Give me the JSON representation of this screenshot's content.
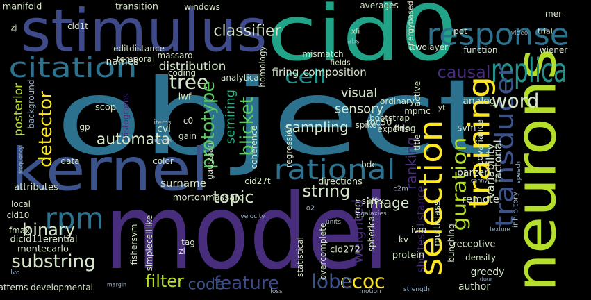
{
  "words": [
    "object",
    "model",
    "cid0",
    "stimulus",
    "kernel",
    "neurons",
    "response",
    "citation",
    "replica",
    "rational",
    "selection",
    "training",
    "transducer",
    "guration",
    "rpm",
    "cell",
    "classifier",
    "causal",
    "word",
    "tree",
    "detector",
    "prototype",
    "blicket",
    "semiring",
    "automata",
    "topic",
    "string",
    "image",
    "ranking",
    "ecoc",
    "feature",
    "code",
    "lobe",
    "filter",
    "substring",
    "binary",
    "weighted",
    "sampling",
    "sensory",
    "visual",
    "composition",
    "firing",
    "distribution",
    "names",
    "editdistance",
    "analytical",
    "posterior",
    "background",
    "scop",
    "cvl",
    "iwf",
    "c0",
    "gp",
    "gain",
    "histograms",
    "roc50",
    "mpmc",
    "analog",
    "svm",
    "covariance",
    "factorial",
    "variability",
    "parzen",
    "inhibitory",
    "remote",
    "multiclass",
    "bunching",
    "shortestdistance",
    "ivm",
    "kv",
    "protein",
    "receptive",
    "density",
    "greedy",
    "author",
    "cid272",
    "spherical",
    "suffix",
    "error",
    "overcomplete",
    "statistical",
    "directions",
    "cid27t",
    "bdc",
    "color",
    "data",
    "local",
    "attributes",
    "surname",
    "mortonmassaro",
    "cid10",
    "fmax",
    "dicid11erential",
    "tag",
    "zi",
    "fishersvm",
    "simplecelllike",
    "montecarlo",
    "patterns developmental",
    "manifold",
    "transition",
    "windows",
    "averages",
    "energybased",
    "twolayer",
    "mer",
    "cid1t",
    "xli",
    "trial",
    "wiener",
    "temporal",
    "massaro",
    "homology",
    "coding",
    "function",
    "pot",
    "mismatch",
    "fields",
    "zj",
    "ordinary",
    "experts",
    "bootstrap",
    "firing",
    "coherence",
    "gaussian",
    "regression",
    "o2",
    "title",
    "active",
    "yt",
    "spike",
    "c2m",
    "abs",
    "curves",
    "items",
    "loss",
    "motion",
    "strength",
    "margin",
    "velocity",
    "galaxies",
    "units",
    "texture",
    "canny",
    "door",
    "speech",
    "lvq",
    "video",
    "frequency"
  ]
}
